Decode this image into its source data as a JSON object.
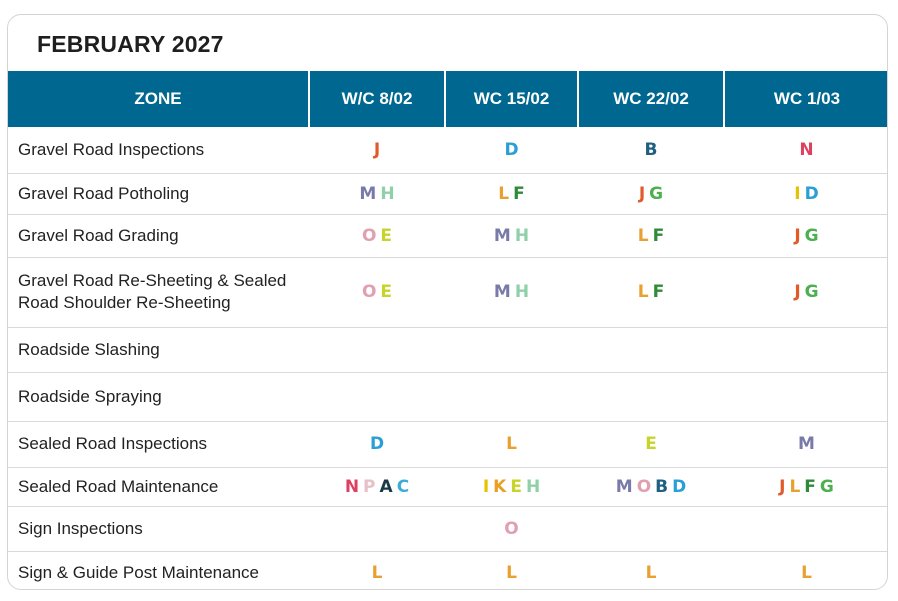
{
  "title": "FEBRUARY 2027",
  "headers": [
    "ZONE",
    "W/C 8/02",
    "WC 15/02",
    "WC 22/02",
    "WC 1/03"
  ],
  "letter_colors": {
    "A": "#1a3a4a",
    "B": "#1f6080",
    "C": "#3aaed8",
    "D": "#2a9fd6",
    "E": "#c7d42a",
    "F": "#2e8b3a",
    "G": "#4caf50",
    "H": "#8fd0a8",
    "I": "#e6c200",
    "J": "#e05a2a",
    "K": "#e8a020",
    "L": "#e8a030",
    "M": "#7a7aaa",
    "N": "#e04060",
    "O": "#e0a0b0",
    "P": "#e8c0c8"
  },
  "rows": [
    {
      "zone": "Gravel Road Inspections",
      "cells": [
        [
          "J"
        ],
        [
          "D"
        ],
        [
          "B"
        ],
        [
          "N"
        ]
      ],
      "height": 46
    },
    {
      "zone": "Gravel Road Potholing",
      "cells": [
        [
          "M",
          "H"
        ],
        [
          "L",
          "F"
        ],
        [
          "J",
          "G"
        ],
        [
          "I",
          "D"
        ]
      ],
      "height": 41
    },
    {
      "zone": "Gravel Road Grading",
      "cells": [
        [
          "O",
          "E"
        ],
        [
          "M",
          "H"
        ],
        [
          "L",
          "F"
        ],
        [
          "J",
          "G"
        ]
      ],
      "height": 43
    },
    {
      "zone": "Gravel Road Re-Sheeting & Sealed Road Shoulder Re-Sheeting",
      "cells": [
        [
          "O",
          "E"
        ],
        [
          "M",
          "H"
        ],
        [
          "L",
          "F"
        ],
        [
          "J",
          "G"
        ]
      ],
      "height": 70
    },
    {
      "zone": "Roadside Slashing",
      "cells": [
        [],
        [],
        [],
        []
      ],
      "height": 45
    },
    {
      "zone": "Roadside Spraying",
      "cells": [
        [],
        [],
        [],
        []
      ],
      "height": 49
    },
    {
      "zone": "Sealed Road Inspections",
      "cells": [
        [
          "D"
        ],
        [
          "L"
        ],
        [
          "E"
        ],
        [
          "M"
        ]
      ],
      "height": 46
    },
    {
      "zone": "Sealed Road Maintenance",
      "cells": [
        [
          "N",
          "P",
          "A",
          "C"
        ],
        [
          "I",
          "K",
          "E",
          "H"
        ],
        [
          "M",
          "O",
          "B",
          "D"
        ],
        [
          "J",
          "L",
          "F",
          "G"
        ]
      ],
      "height": 39
    },
    {
      "zone": "Sign Inspections",
      "cells": [
        [],
        [
          "O"
        ],
        [],
        []
      ],
      "height": 45
    },
    {
      "zone": "Sign & Guide Post Maintenance",
      "cells": [
        [
          "L"
        ],
        [
          "L"
        ],
        [
          "L"
        ],
        [
          "L"
        ]
      ],
      "height": 44
    }
  ]
}
